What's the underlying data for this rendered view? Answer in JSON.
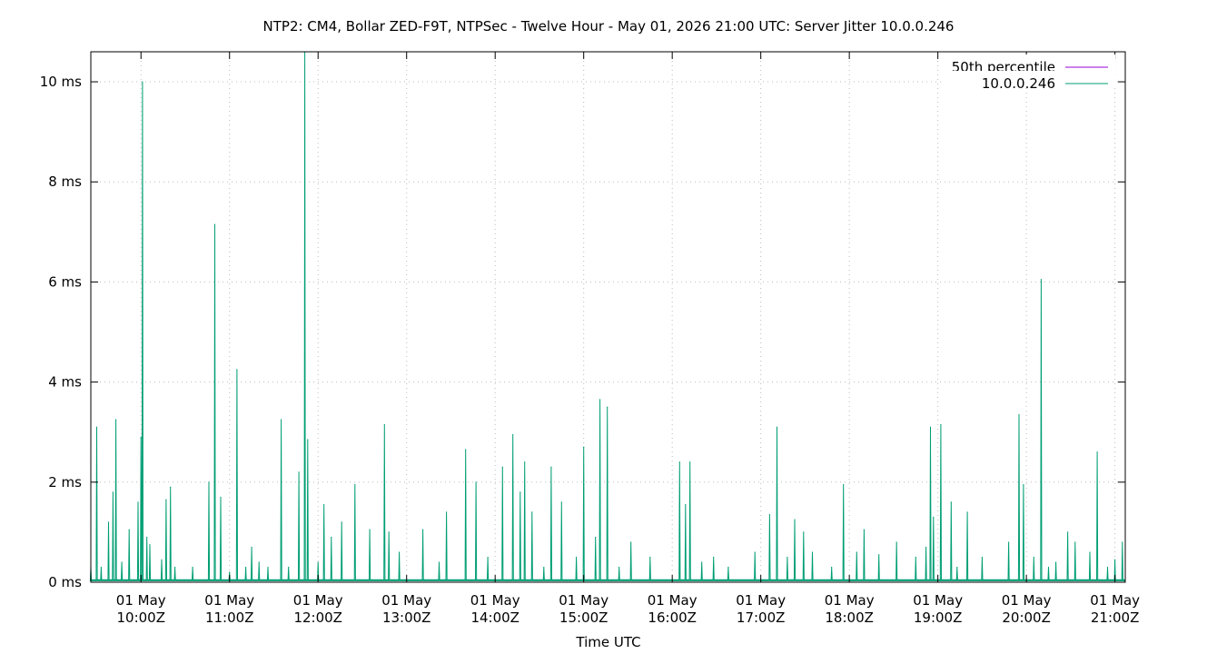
{
  "chart_data": {
    "type": "line",
    "title": "NTP2: CM4, Bollar ZED-F9T, NTPSec - Twelve Hour - May 01, 2026 21:00 UTC: Server Jitter 10.0.0.246",
    "xlabel": "Time UTC",
    "ylabel": "",
    "x_range": [
      "2026-05-01T09:26Z",
      "2026-05-01T21:07Z"
    ],
    "x_ticks": [
      {
        "at": "2026-05-01T10:00Z",
        "line1": "01 May",
        "line2": "10:00Z"
      },
      {
        "at": "2026-05-01T11:00Z",
        "line1": "01 May",
        "line2": "11:00Z"
      },
      {
        "at": "2026-05-01T12:00Z",
        "line1": "01 May",
        "line2": "12:00Z"
      },
      {
        "at": "2026-05-01T13:00Z",
        "line1": "01 May",
        "line2": "13:00Z"
      },
      {
        "at": "2026-05-01T14:00Z",
        "line1": "01 May",
        "line2": "14:00Z"
      },
      {
        "at": "2026-05-01T15:00Z",
        "line1": "01 May",
        "line2": "15:00Z"
      },
      {
        "at": "2026-05-01T16:00Z",
        "line1": "01 May",
        "line2": "16:00Z"
      },
      {
        "at": "2026-05-01T17:00Z",
        "line1": "01 May",
        "line2": "17:00Z"
      },
      {
        "at": "2026-05-01T18:00Z",
        "line1": "01 May",
        "line2": "18:00Z"
      },
      {
        "at": "2026-05-01T19:00Z",
        "line1": "01 May",
        "line2": "19:00Z"
      },
      {
        "at": "2026-05-01T20:00Z",
        "line1": "01 May",
        "line2": "20:00Z"
      },
      {
        "at": "2026-05-01T21:00Z",
        "line1": "01 May",
        "line2": "21:00Z"
      }
    ],
    "ylim": [
      0,
      10.6
    ],
    "y_ticks": [
      {
        "value": 0,
        "label": "0 ms"
      },
      {
        "value": 2,
        "label": "2 ms"
      },
      {
        "value": 4,
        "label": "4 ms"
      },
      {
        "value": 6,
        "label": "6 ms"
      },
      {
        "value": 8,
        "label": "8 ms"
      },
      {
        "value": 10,
        "label": "10 ms"
      }
    ],
    "grid": true,
    "legend_position": "top-right",
    "series": [
      {
        "name": "50th percentile",
        "color": "#9400d3",
        "points": []
      },
      {
        "name": "10.0.0.246",
        "color": "#009e73",
        "points": [
          [
            "2026-05-01T09:26Z",
            0.3
          ],
          [
            "2026-05-01T09:30Z",
            3.1
          ],
          [
            "2026-05-01T09:33Z",
            0.3
          ],
          [
            "2026-05-01T09:38Z",
            1.2
          ],
          [
            "2026-05-01T09:41Z",
            1.8
          ],
          [
            "2026-05-01T09:43Z",
            3.25
          ],
          [
            "2026-05-01T09:47Z",
            0.4
          ],
          [
            "2026-05-01T09:52Z",
            1.05
          ],
          [
            "2026-05-01T09:58Z",
            1.6
          ],
          [
            "2026-05-01T10:00Z",
            2.9
          ],
          [
            "2026-05-01T10:01Z",
            10.0
          ],
          [
            "2026-05-01T10:04Z",
            0.9
          ],
          [
            "2026-05-01T10:06Z",
            0.75
          ],
          [
            "2026-05-01T10:14Z",
            0.45
          ],
          [
            "2026-05-01T10:17Z",
            1.65
          ],
          [
            "2026-05-01T10:20Z",
            1.9
          ],
          [
            "2026-05-01T10:23Z",
            0.3
          ],
          [
            "2026-05-01T10:35Z",
            0.3
          ],
          [
            "2026-05-01T10:46Z",
            2.0
          ],
          [
            "2026-05-01T10:50Z",
            7.15
          ],
          [
            "2026-05-01T10:54Z",
            1.7
          ],
          [
            "2026-05-01T11:00Z",
            0.2
          ],
          [
            "2026-05-01T11:05Z",
            4.25
          ],
          [
            "2026-05-01T11:11Z",
            0.3
          ],
          [
            "2026-05-01T11:15Z",
            0.7
          ],
          [
            "2026-05-01T11:20Z",
            0.4
          ],
          [
            "2026-05-01T11:26Z",
            0.3
          ],
          [
            "2026-05-01T11:35Z",
            3.25
          ],
          [
            "2026-05-01T11:40Z",
            0.3
          ],
          [
            "2026-05-01T11:47Z",
            2.2
          ],
          [
            "2026-05-01T11:51Z",
            10.6
          ],
          [
            "2026-05-01T11:53Z",
            2.85
          ],
          [
            "2026-05-01T12:00Z",
            0.4
          ],
          [
            "2026-05-01T12:04Z",
            1.55
          ],
          [
            "2026-05-01T12:09Z",
            0.9
          ],
          [
            "2026-05-01T12:16Z",
            1.2
          ],
          [
            "2026-05-01T12:25Z",
            1.95
          ],
          [
            "2026-05-01T12:35Z",
            1.05
          ],
          [
            "2026-05-01T12:45Z",
            3.15
          ],
          [
            "2026-05-01T12:48Z",
            1.0
          ],
          [
            "2026-05-01T12:55Z",
            0.6
          ],
          [
            "2026-05-01T13:11Z",
            1.05
          ],
          [
            "2026-05-01T13:22Z",
            0.4
          ],
          [
            "2026-05-01T13:27Z",
            1.4
          ],
          [
            "2026-05-01T13:40Z",
            2.65
          ],
          [
            "2026-05-01T13:47Z",
            2.0
          ],
          [
            "2026-05-01T13:55Z",
            0.5
          ],
          [
            "2026-05-01T14:05Z",
            2.3
          ],
          [
            "2026-05-01T14:12Z",
            2.95
          ],
          [
            "2026-05-01T14:17Z",
            1.8
          ],
          [
            "2026-05-01T14:20Z",
            2.4
          ],
          [
            "2026-05-01T14:25Z",
            1.4
          ],
          [
            "2026-05-01T14:33Z",
            0.3
          ],
          [
            "2026-05-01T14:38Z",
            2.3
          ],
          [
            "2026-05-01T14:45Z",
            1.6
          ],
          [
            "2026-05-01T14:55Z",
            0.5
          ],
          [
            "2026-05-01T15:00Z",
            2.7
          ],
          [
            "2026-05-01T15:08Z",
            0.9
          ],
          [
            "2026-05-01T15:11Z",
            3.65
          ],
          [
            "2026-05-01T15:16Z",
            3.5
          ],
          [
            "2026-05-01T15:24Z",
            0.3
          ],
          [
            "2026-05-01T15:32Z",
            0.8
          ],
          [
            "2026-05-01T15:45Z",
            0.5
          ],
          [
            "2026-05-01T16:05Z",
            0.5
          ],
          [
            "2026-05-01T16:05Z",
            2.4
          ],
          [
            "2026-05-01T16:09Z",
            1.55
          ],
          [
            "2026-05-01T16:12Z",
            2.4
          ],
          [
            "2026-05-01T16:20Z",
            0.4
          ],
          [
            "2026-05-01T16:28Z",
            0.5
          ],
          [
            "2026-05-01T16:38Z",
            0.3
          ],
          [
            "2026-05-01T16:56Z",
            0.6
          ],
          [
            "2026-05-01T17:06Z",
            1.35
          ],
          [
            "2026-05-01T17:11Z",
            3.1
          ],
          [
            "2026-05-01T17:18Z",
            0.5
          ],
          [
            "2026-05-01T17:23Z",
            1.25
          ],
          [
            "2026-05-01T17:29Z",
            1.0
          ],
          [
            "2026-05-01T17:35Z",
            0.6
          ],
          [
            "2026-05-01T17:48Z",
            0.3
          ],
          [
            "2026-05-01T17:56Z",
            1.95
          ],
          [
            "2026-05-01T18:05Z",
            0.6
          ],
          [
            "2026-05-01T18:10Z",
            1.05
          ],
          [
            "2026-05-01T18:20Z",
            0.55
          ],
          [
            "2026-05-01T18:32Z",
            0.8
          ],
          [
            "2026-05-01T18:45Z",
            0.5
          ],
          [
            "2026-05-01T18:52Z",
            0.7
          ],
          [
            "2026-05-01T18:55Z",
            3.1
          ],
          [
            "2026-05-01T18:57Z",
            1.3
          ],
          [
            "2026-05-01T19:02Z",
            3.15
          ],
          [
            "2026-05-01T19:09Z",
            1.6
          ],
          [
            "2026-05-01T19:13Z",
            0.3
          ],
          [
            "2026-05-01T19:20Z",
            1.4
          ],
          [
            "2026-05-01T19:30Z",
            0.5
          ],
          [
            "2026-05-01T19:48Z",
            0.8
          ],
          [
            "2026-05-01T19:55Z",
            3.35
          ],
          [
            "2026-05-01T19:58Z",
            1.95
          ],
          [
            "2026-05-01T20:05Z",
            0.5
          ],
          [
            "2026-05-01T20:10Z",
            6.05
          ],
          [
            "2026-05-01T20:15Z",
            0.3
          ],
          [
            "2026-05-01T20:20Z",
            0.4
          ],
          [
            "2026-05-01T20:28Z",
            1.0
          ],
          [
            "2026-05-01T20:33Z",
            0.8
          ],
          [
            "2026-05-01T20:43Z",
            0.6
          ],
          [
            "2026-05-01T20:48Z",
            2.6
          ],
          [
            "2026-05-01T20:55Z",
            0.3
          ],
          [
            "2026-05-01T21:00Z",
            0.45
          ],
          [
            "2026-05-01T21:05Z",
            0.8
          ]
        ]
      }
    ]
  }
}
